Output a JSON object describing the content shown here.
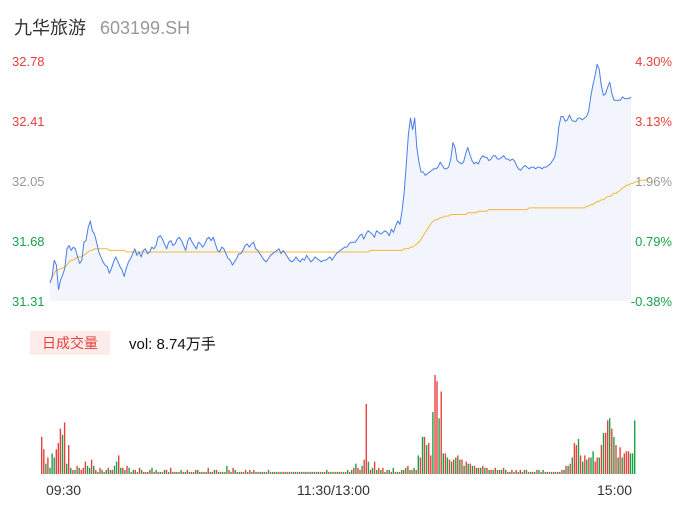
{
  "header": {
    "name": "九华旅游",
    "code": "603199.SH"
  },
  "colors": {
    "up": "#e8413d",
    "down": "#1aa24b",
    "neutral": "#999999",
    "price_line": "#4a7ee8",
    "avg_line": "#f4b73a",
    "area_fill": "#f2f5fc"
  },
  "y_left_labels": [
    "32.78",
    "32.41",
    "32.05",
    "31.68",
    "31.31"
  ],
  "y_right_labels": [
    "4.30%",
    "3.13%",
    "1.96%",
    "0.79%",
    "-0.38%"
  ],
  "volume": {
    "badge": "日成交量",
    "text": "vol: 8.74万手"
  },
  "x_labels": [
    "09:30",
    "11:30/13:00",
    "15:00"
  ],
  "chart_data": {
    "type": "line",
    "ylim": [
      31.31,
      32.78
    ],
    "series": [
      {
        "values": [
          31.42,
          31.46,
          31.56,
          31.53,
          31.38,
          31.44,
          31.47,
          31.51,
          31.63,
          31.65,
          31.62,
          31.64,
          31.63,
          31.58,
          31.54,
          31.56,
          31.67,
          31.68,
          31.76,
          31.8,
          31.74,
          31.72,
          31.67,
          31.61,
          31.58,
          31.55,
          31.53,
          31.52,
          31.48,
          31.51,
          31.55,
          31.58,
          31.55,
          31.52,
          31.5,
          31.46,
          31.51,
          31.55,
          31.57,
          31.6,
          31.63,
          31.59,
          31.61,
          31.58,
          31.62,
          31.63,
          31.6,
          31.61,
          31.64,
          31.63,
          31.65,
          31.7,
          31.71,
          31.69,
          31.66,
          31.63,
          31.67,
          31.68,
          31.65,
          31.66,
          31.69,
          31.7,
          31.68,
          31.65,
          31.62,
          31.68,
          31.7,
          31.67,
          31.65,
          31.63,
          31.67,
          31.66,
          31.64,
          31.66,
          31.69,
          31.7,
          31.68,
          31.7,
          31.66,
          31.62,
          31.61,
          31.64,
          31.63,
          31.6,
          31.57,
          31.56,
          31.53,
          31.55,
          31.57,
          31.6,
          31.6,
          31.62,
          31.65,
          31.66,
          31.64,
          31.66,
          31.67,
          31.63,
          31.62,
          31.6,
          31.58,
          31.56,
          31.55,
          31.57,
          31.59,
          31.6,
          31.61,
          31.62,
          31.63,
          31.6,
          31.62,
          31.6,
          31.58,
          31.56,
          31.55,
          31.56,
          31.58,
          31.56,
          31.55,
          31.57,
          31.56,
          31.59,
          31.57,
          31.55,
          31.56,
          31.58,
          31.57,
          31.56,
          31.55,
          31.56,
          31.56,
          31.57,
          31.58,
          31.56,
          31.58,
          31.6,
          31.61,
          31.62,
          31.63,
          31.64,
          31.64,
          31.66,
          31.67,
          31.67,
          31.67,
          31.69,
          31.71,
          31.72,
          31.69,
          31.72,
          31.74,
          31.73,
          31.72,
          31.7,
          31.74,
          31.73,
          31.72,
          31.73,
          31.74,
          31.73,
          31.71,
          31.75,
          31.73,
          31.77,
          31.8,
          31.78,
          31.86,
          31.97,
          32.14,
          32.33,
          32.43,
          32.36,
          32.43,
          32.25,
          32.16,
          32.1,
          32.1,
          32.08,
          32.09,
          32.1,
          32.11,
          32.12,
          32.12,
          32.13,
          32.16,
          32.14,
          32.12,
          32.12,
          32.13,
          32.18,
          32.28,
          32.25,
          32.17,
          32.16,
          32.15,
          32.16,
          32.21,
          32.25,
          32.21,
          32.17,
          32.15,
          32.16,
          32.15,
          32.18,
          32.2,
          32.19,
          32.19,
          32.17,
          32.18,
          32.2,
          32.2,
          32.18,
          32.18,
          32.19,
          32.2,
          32.18,
          32.18,
          32.17,
          32.18,
          32.17,
          32.14,
          32.12,
          32.11,
          32.13,
          32.14,
          32.13,
          32.12,
          32.13,
          32.13,
          32.12,
          32.13,
          32.13,
          32.12,
          32.13,
          32.13,
          32.14,
          32.15,
          32.17,
          32.19,
          32.26,
          32.38,
          32.44,
          32.44,
          32.41,
          32.42,
          32.45,
          32.42,
          32.41,
          32.41,
          32.43,
          32.43,
          32.42,
          32.43,
          32.44,
          32.47,
          32.56,
          32.63,
          32.69,
          32.76,
          32.73,
          32.63,
          32.57,
          32.58,
          32.62,
          32.65,
          32.58,
          32.54,
          32.54,
          32.54,
          32.54,
          32.56,
          32.55,
          32.55,
          32.55,
          32.56
        ]
      },
      {
        "values": [
          31.43,
          31.45,
          31.48,
          31.5,
          31.5,
          31.51,
          31.51,
          31.52,
          31.53,
          31.55,
          31.56,
          31.56,
          31.57,
          31.58,
          31.58,
          31.58,
          31.59,
          31.6,
          31.61,
          31.62,
          31.62,
          31.63,
          31.63,
          31.63,
          31.63,
          31.63,
          31.63,
          31.63,
          31.62,
          31.62,
          31.62,
          31.62,
          31.62,
          31.62,
          31.62,
          31.62,
          31.61,
          31.61,
          31.61,
          31.61,
          31.61,
          31.61,
          31.61,
          31.61,
          31.61,
          31.61,
          31.61,
          31.61,
          31.61,
          31.61,
          31.61,
          31.61,
          31.61,
          31.61,
          31.61,
          31.61,
          31.61,
          31.61,
          31.61,
          31.61,
          31.61,
          31.61,
          31.61,
          31.61,
          31.61,
          31.61,
          31.61,
          31.61,
          31.61,
          31.61,
          31.61,
          31.61,
          31.61,
          31.61,
          31.61,
          31.61,
          31.61,
          31.61,
          31.61,
          31.61,
          31.61,
          31.61,
          31.61,
          31.61,
          31.61,
          31.61,
          31.61,
          31.61,
          31.61,
          31.61,
          31.61,
          31.61,
          31.61,
          31.61,
          31.61,
          31.61,
          31.61,
          31.61,
          31.61,
          31.61,
          31.61,
          31.61,
          31.61,
          31.61,
          31.61,
          31.61,
          31.61,
          31.61,
          31.61,
          31.61,
          31.61,
          31.61,
          31.61,
          31.61,
          31.61,
          31.61,
          31.61,
          31.61,
          31.61,
          31.61,
          31.61,
          31.61,
          31.61,
          31.61,
          31.61,
          31.61,
          31.61,
          31.61,
          31.61,
          31.61,
          31.61,
          31.61,
          31.61,
          31.61,
          31.61,
          31.61,
          31.61,
          31.61,
          31.61,
          31.61,
          31.61,
          31.61,
          31.61,
          31.61,
          31.61,
          31.61,
          31.61,
          31.61,
          31.61,
          31.61,
          31.61,
          31.62,
          31.62,
          31.62,
          31.62,
          31.62,
          31.62,
          31.62,
          31.62,
          31.62,
          31.62,
          31.62,
          31.62,
          31.62,
          31.62,
          31.62,
          31.62,
          31.63,
          31.63,
          31.63,
          31.64,
          31.64,
          31.65,
          31.66,
          31.67,
          31.69,
          31.71,
          31.73,
          31.75,
          31.77,
          31.79,
          31.8,
          31.81,
          31.81,
          31.82,
          31.82,
          31.83,
          31.83,
          31.83,
          31.84,
          31.84,
          31.84,
          31.84,
          31.84,
          31.84,
          31.84,
          31.84,
          31.85,
          31.85,
          31.85,
          31.85,
          31.85,
          31.86,
          31.86,
          31.86,
          31.86,
          31.86,
          31.87,
          31.87,
          31.87,
          31.87,
          31.87,
          31.87,
          31.87,
          31.87,
          31.87,
          31.87,
          31.87,
          31.87,
          31.87,
          31.87,
          31.87,
          31.87,
          31.87,
          31.87,
          31.87,
          31.88,
          31.88,
          31.88,
          31.88,
          31.88,
          31.88,
          31.88,
          31.88,
          31.88,
          31.88,
          31.88,
          31.88,
          31.88,
          31.88,
          31.88,
          31.88,
          31.88,
          31.88,
          31.88,
          31.88,
          31.88,
          31.88,
          31.88,
          31.88,
          31.88,
          31.88,
          31.88,
          31.89,
          31.89,
          31.9,
          31.9,
          31.91,
          31.92,
          31.92,
          31.93,
          31.93,
          31.94,
          31.95,
          31.95,
          31.96,
          31.97,
          31.97,
          31.98,
          31.99,
          32.0,
          32.01,
          32.02,
          32.02,
          32.03,
          32.03,
          32.04,
          32.04,
          32.05,
          32.05,
          32.05,
          32.05,
          32.06,
          32.06
        ]
      }
    ],
    "volumes": [
      18,
      12,
      5,
      8,
      3,
      10,
      8,
      12,
      15,
      22,
      19,
      25,
      5,
      14,
      3,
      2,
      2,
      4,
      3,
      2,
      3,
      6,
      4,
      3,
      7,
      4,
      2,
      1,
      3,
      2,
      1,
      2,
      3,
      2,
      2,
      4,
      6,
      9,
      3,
      3,
      2,
      4,
      3,
      1,
      2,
      2,
      1,
      3,
      2,
      1,
      1,
      1,
      2,
      3,
      1,
      2,
      1,
      1,
      1,
      2,
      2,
      1,
      3,
      1,
      1,
      1,
      1,
      2,
      1,
      1,
      2,
      1,
      1,
      1,
      2,
      2,
      1,
      1,
      1,
      1,
      3,
      1,
      1,
      2,
      2,
      1,
      1,
      1,
      1,
      4,
      2,
      1,
      3,
      2,
      1,
      1,
      1,
      1,
      2,
      1,
      2,
      1,
      2,
      1,
      1,
      1,
      1,
      1,
      1,
      2,
      1,
      1,
      1,
      1,
      1,
      1,
      1,
      1,
      1,
      1,
      1,
      1,
      1,
      1,
      1,
      1,
      1,
      1,
      1,
      1,
      1,
      1,
      1,
      1,
      1,
      1,
      1,
      2,
      1,
      1,
      1,
      1,
      1,
      1,
      1,
      1,
      1,
      2,
      1,
      2,
      3,
      5,
      3,
      2,
      4,
      7,
      34,
      6,
      2,
      3,
      6,
      2,
      3,
      2,
      3,
      1,
      2,
      2,
      1,
      3,
      1,
      1,
      1,
      2,
      2,
      3,
      4,
      2,
      2,
      3,
      2,
      9,
      8,
      18,
      18,
      14,
      15,
      9,
      30,
      48,
      45,
      27,
      40,
      10,
      10,
      8,
      7,
      6,
      7,
      8,
      9,
      7,
      7,
      4,
      6,
      5,
      5,
      4,
      4,
      3,
      3,
      3,
      4,
      3,
      3,
      2,
      2,
      2,
      3,
      2,
      2,
      2,
      3,
      2,
      1,
      1,
      2,
      1,
      2,
      1,
      2,
      1,
      2,
      2,
      1,
      1,
      1,
      1,
      2,
      2,
      1,
      2,
      1,
      1,
      1,
      1,
      1,
      1,
      1,
      1,
      2,
      2,
      4,
      4,
      5,
      8,
      15,
      14,
      17,
      9,
      6,
      9,
      7,
      8,
      8,
      11,
      6,
      8,
      8,
      14,
      20,
      20,
      26,
      27,
      22,
      18,
      14,
      8,
      13,
      8,
      10,
      11,
      11,
      10,
      10,
      26
    ],
    "volume_colors": [
      "u",
      "u",
      "d",
      "u",
      "d",
      "d",
      "d",
      "u",
      "u",
      "u",
      "d",
      "u",
      "d",
      "u",
      "d",
      "u",
      "d",
      "u",
      "d",
      "u",
      "u",
      "u",
      "d",
      "d",
      "u",
      "d",
      "u",
      "d",
      "u",
      "d",
      "u",
      "d",
      "u",
      "d",
      "u",
      "d",
      "d",
      "u",
      "d",
      "u",
      "d",
      "u",
      "d",
      "u",
      "d",
      "u",
      "d",
      "u",
      "d",
      "u",
      "u",
      "d",
      "u",
      "d",
      "u",
      "d",
      "u",
      "d",
      "u",
      "d",
      "u",
      "d",
      "u",
      "d",
      "u",
      "d",
      "u",
      "d",
      "u",
      "d",
      "u",
      "d",
      "u",
      "d",
      "u",
      "d",
      "u",
      "d",
      "u",
      "d",
      "u",
      "d",
      "u",
      "d",
      "u",
      "d",
      "u",
      "d",
      "u",
      "d",
      "u",
      "d",
      "u",
      "d",
      "u",
      "d",
      "u",
      "d",
      "u",
      "d",
      "u",
      "d",
      "u",
      "d",
      "u",
      "d",
      "u",
      "d",
      "u",
      "d",
      "u",
      "d",
      "u",
      "d",
      "u",
      "d",
      "u",
      "d",
      "u",
      "d",
      "u",
      "d",
      "u",
      "d",
      "u",
      "d",
      "u",
      "d",
      "u",
      "d",
      "u",
      "d",
      "u",
      "d",
      "u",
      "d",
      "u",
      "d",
      "u",
      "d",
      "u",
      "d",
      "u",
      "d",
      "u",
      "d",
      "u",
      "d",
      "u",
      "d",
      "u",
      "d",
      "u",
      "u",
      "d",
      "u",
      "u",
      "d",
      "u",
      "d",
      "u",
      "d",
      "u",
      "d",
      "u",
      "d",
      "u",
      "d",
      "u",
      "d",
      "u",
      "d",
      "u",
      "d",
      "u",
      "d",
      "u",
      "d",
      "u",
      "d",
      "u",
      "d",
      "u",
      "d",
      "u",
      "d",
      "u",
      "u",
      "d",
      "u",
      "u",
      "d",
      "u",
      "d",
      "u",
      "d",
      "u",
      "d",
      "u",
      "d",
      "u",
      "d",
      "u",
      "d",
      "u",
      "d",
      "u",
      "d",
      "u",
      "d",
      "u",
      "d",
      "u",
      "d",
      "u",
      "d",
      "u",
      "d",
      "u",
      "d",
      "u",
      "d",
      "u",
      "d",
      "u",
      "d",
      "u",
      "d",
      "u",
      "d",
      "u",
      "d",
      "u",
      "d",
      "u",
      "d",
      "u",
      "d",
      "u",
      "d",
      "u",
      "d",
      "u",
      "d",
      "u",
      "d",
      "u",
      "d",
      "u",
      "d",
      "u",
      "d",
      "u",
      "d",
      "u",
      "d",
      "u",
      "u",
      "d",
      "u",
      "d",
      "u",
      "d",
      "u",
      "d",
      "d",
      "u",
      "u",
      "d",
      "u",
      "d",
      "u",
      "u",
      "d",
      "u",
      "d",
      "u",
      "d",
      "u",
      "d",
      "u",
      "u",
      "u",
      "d"
    ]
  }
}
